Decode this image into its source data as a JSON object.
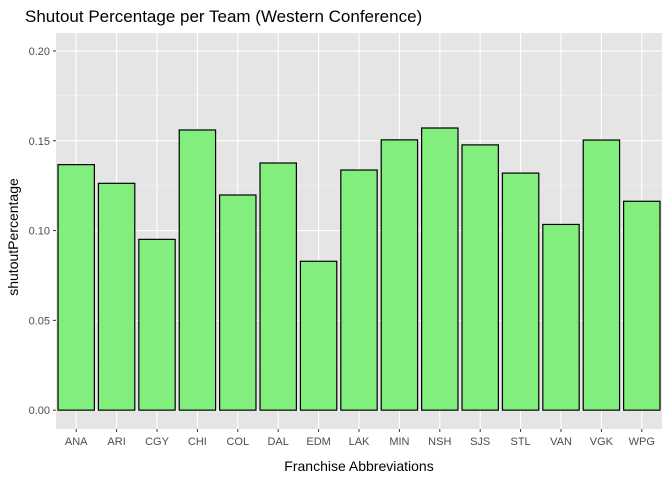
{
  "chart_data": {
    "type": "bar",
    "title": "Shutout Percentage per Team (Western Conference)",
    "xlabel": "Franchise Abbreviations",
    "ylabel": "shutoutPercentage",
    "categories": [
      "ANA",
      "ARI",
      "CGY",
      "CHI",
      "COL",
      "DAL",
      "EDM",
      "LAK",
      "MIN",
      "NSH",
      "SJS",
      "STL",
      "VAN",
      "VGK",
      "WPG"
    ],
    "values": [
      0.1367,
      0.1263,
      0.0951,
      0.156,
      0.1198,
      0.1376,
      0.0829,
      0.1337,
      0.1505,
      0.1571,
      0.1477,
      0.132,
      0.1034,
      0.1504,
      0.1163
    ],
    "ylim": [
      -0.0105,
      0.21
    ],
    "yticks": [
      0.0,
      0.05,
      0.1,
      0.15,
      0.2
    ],
    "ytick_labels": [
      "0.00",
      "0.05",
      "0.10",
      "0.15",
      "0.20"
    ],
    "grid": true,
    "legend": "none",
    "colors": {
      "bar_fill": "#82ee7e",
      "bar_stroke": "#000000",
      "panel_background": "#e5e5e5",
      "grid_major": "#ffffff",
      "grid_minor": "#f2f2f2",
      "tick_label": "#4d4d4d"
    }
  }
}
